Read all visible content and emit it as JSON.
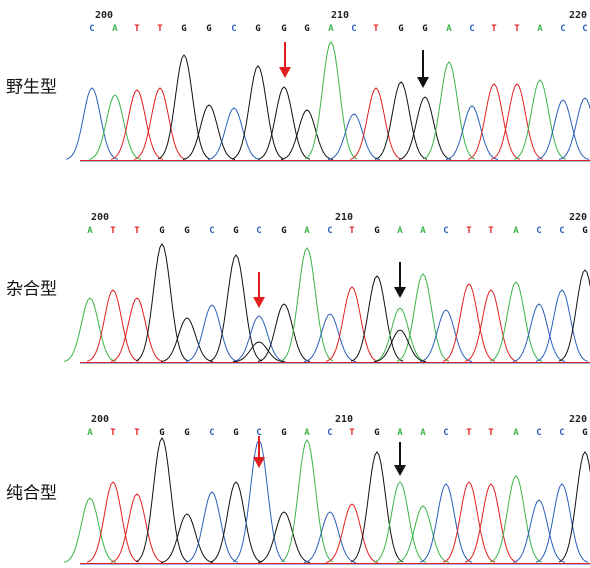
{
  "panels": [
    {
      "label": "野生型",
      "positions": [
        "200",
        "210",
        "220"
      ],
      "bases": [
        "C",
        "A",
        "T",
        "T",
        "G",
        "G",
        "C",
        "G",
        "G",
        "G",
        "A",
        "C",
        "T",
        "G",
        "G",
        "A",
        "C",
        "T",
        "T",
        "A",
        "C",
        "C"
      ]
    },
    {
      "label": "杂合型",
      "positions": [
        "200",
        "210",
        "220"
      ],
      "bases": [
        "A",
        "T",
        "T",
        "G",
        "G",
        "C",
        "G",
        "C",
        "G",
        "A",
        "C",
        "T",
        "G",
        "A",
        "A",
        "C",
        "T",
        "T",
        "A",
        "C",
        "C",
        "G"
      ]
    },
    {
      "label": "纯合型",
      "positions": [
        "200",
        "210",
        "220"
      ],
      "bases": [
        "A",
        "T",
        "T",
        "G",
        "G",
        "C",
        "G",
        "C",
        "G",
        "A",
        "C",
        "T",
        "G",
        "A",
        "A",
        "C",
        "T",
        "T",
        "A",
        "C",
        "C",
        "G"
      ]
    }
  ]
}
